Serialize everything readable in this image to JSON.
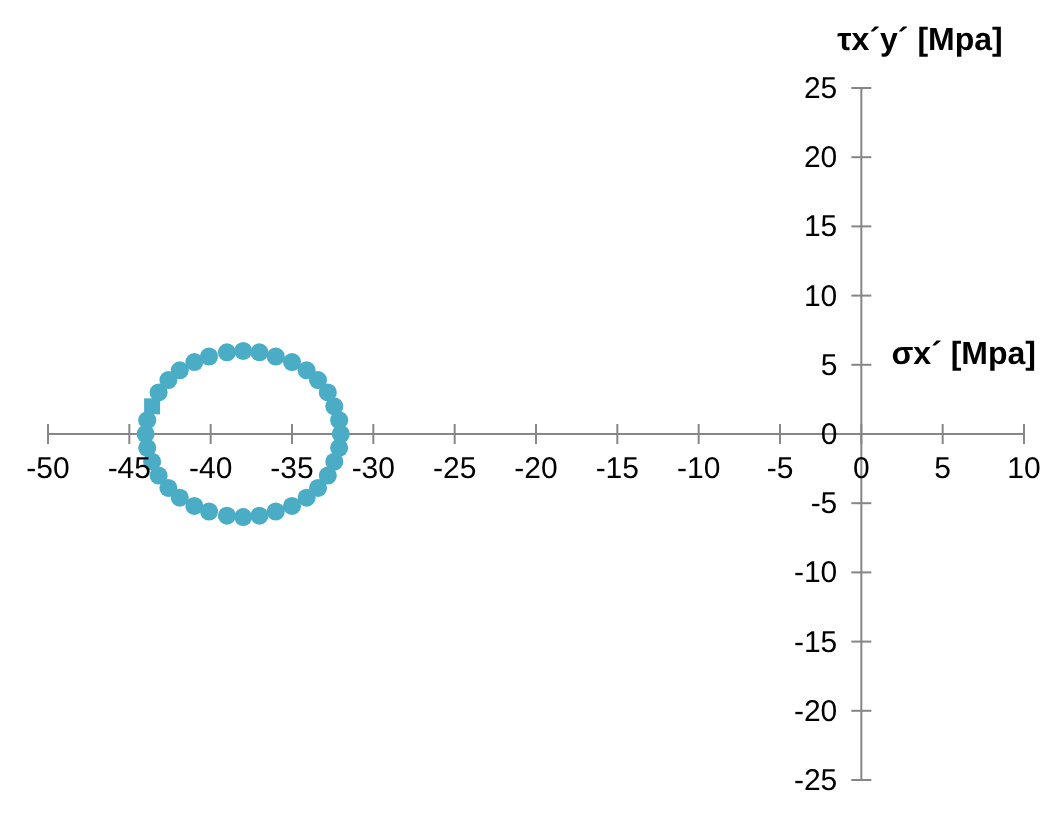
{
  "chart_data": {
    "type": "scatter",
    "xlabel": "σx´ [Mpa]",
    "ylabel": "τx´y´ [Mpa]",
    "xlim": [
      -50,
      10
    ],
    "xticks": [
      -50,
      -45,
      -40,
      -35,
      -30,
      -25,
      -20,
      -15,
      -10,
      -5,
      0,
      5,
      10
    ],
    "ylim": [
      -25,
      25
    ],
    "yticks": [
      -25,
      -20,
      -15,
      -10,
      -5,
      0,
      5,
      10,
      15,
      20,
      25
    ],
    "grid": false,
    "legend": false,
    "series": [
      {
        "color": "#4bacc6",
        "marker": "circle",
        "x": [
          -32.0,
          -32.1,
          -32.4,
          -32.8,
          -33.4,
          -34.1,
          -35.0,
          -36.0,
          -37.0,
          -38.0,
          -39.0,
          -40.1,
          -41.0,
          -41.9,
          -42.6,
          -43.2,
          -43.9,
          -44.0,
          -43.9,
          -43.6,
          -43.2,
          -42.6,
          -41.9,
          -41.0,
          -40.1,
          -39.0,
          -38.0,
          -37.0,
          -36.0,
          -35.0,
          -34.1,
          -33.4,
          -32.8,
          -32.4,
          -32.1
        ],
        "values": [
          0.0,
          1.0,
          2.0,
          3.0,
          3.9,
          4.6,
          5.2,
          5.6,
          5.9,
          6.0,
          5.9,
          5.6,
          5.2,
          4.6,
          3.9,
          3.0,
          1.0,
          0.0,
          -1.0,
          -2.0,
          -3.0,
          -3.9,
          -4.6,
          -5.2,
          -5.6,
          -5.9,
          -6.0,
          -5.9,
          -5.6,
          -5.2,
          -4.6,
          -3.9,
          -3.0,
          -2.0,
          -1.0
        ]
      },
      {
        "color": "#4bacc6",
        "marker": "square",
        "x": [
          -43.6
        ],
        "values": [
          2.0
        ]
      }
    ]
  }
}
